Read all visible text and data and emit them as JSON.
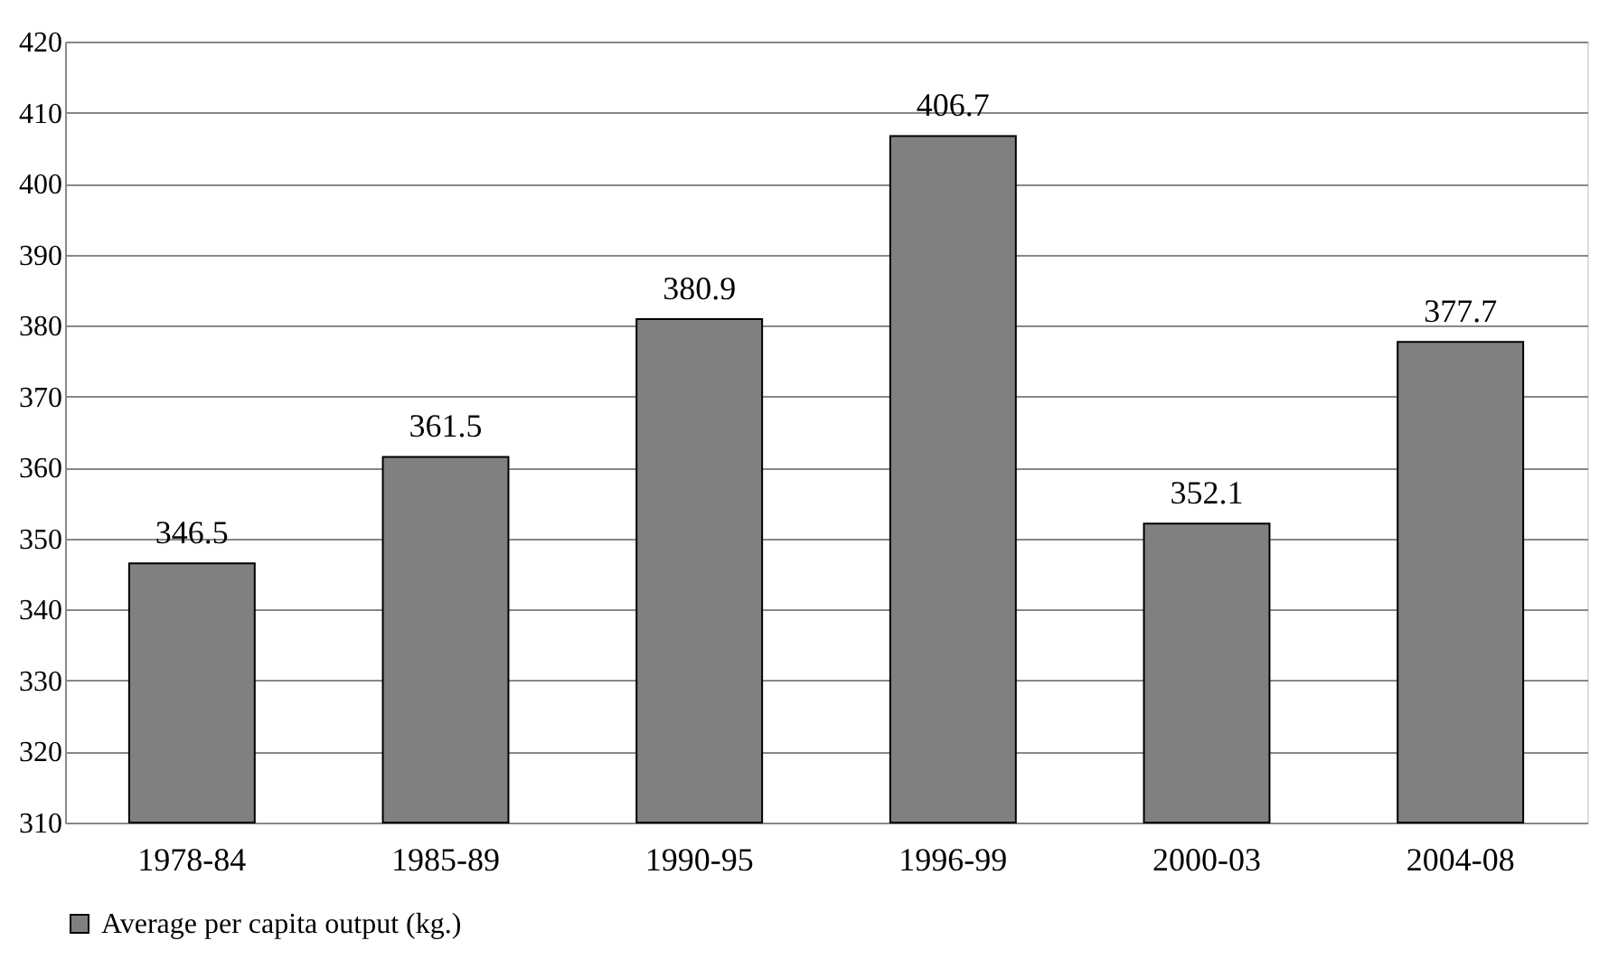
{
  "chart_data": {
    "type": "bar",
    "categories": [
      "1978-84",
      "1985-89",
      "1990-95",
      "1996-99",
      "2000-03",
      "2004-08"
    ],
    "series": [
      {
        "name": "Average per capita output (kg.)",
        "color": "#808080",
        "values": [
          346.5,
          361.5,
          380.9,
          406.7,
          352.1,
          377.7
        ]
      }
    ],
    "ylim": [
      310,
      420
    ],
    "yticks": [
      310,
      320,
      330,
      340,
      350,
      360,
      370,
      380,
      390,
      400,
      410,
      420
    ],
    "grid": "y",
    "legend": "bottom",
    "data_labels": true
  }
}
